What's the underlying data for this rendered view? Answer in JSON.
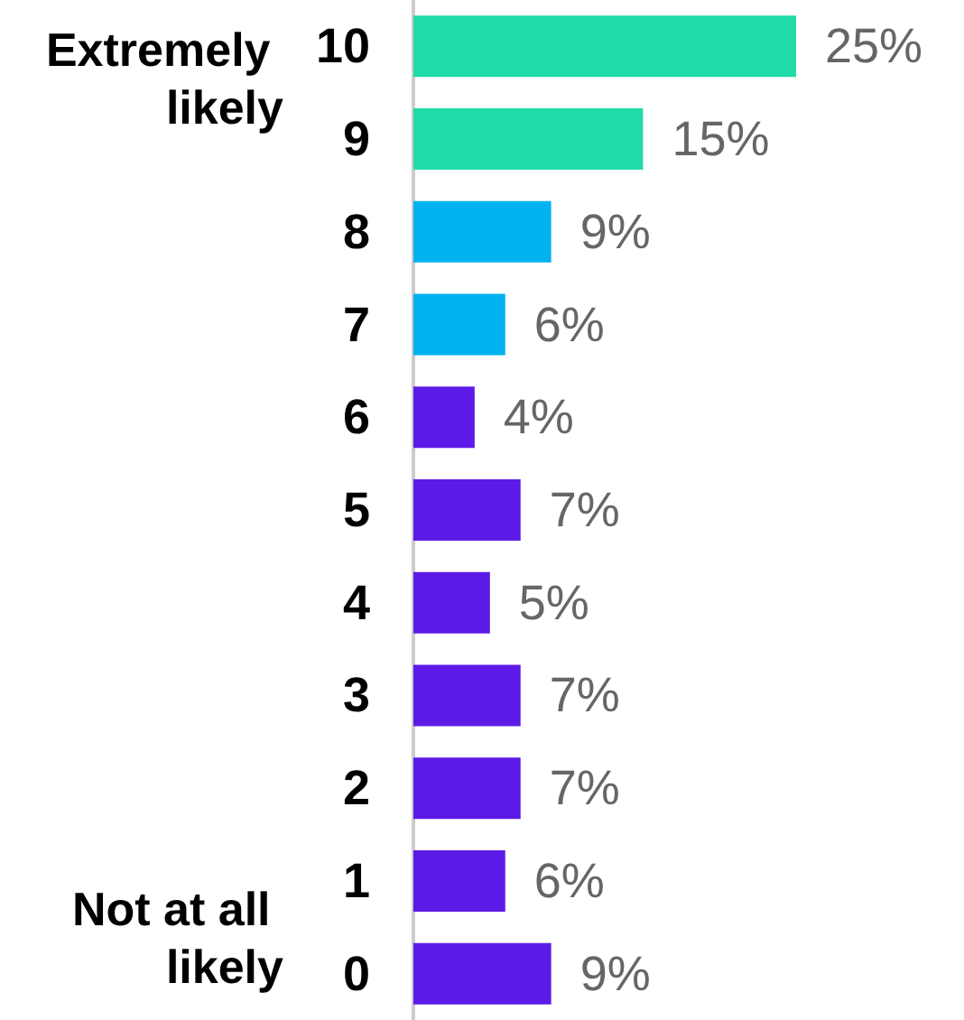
{
  "chart_data": {
    "type": "bar",
    "orientation": "horizontal",
    "categories": [
      "10",
      "9",
      "8",
      "7",
      "6",
      "5",
      "4",
      "3",
      "2",
      "1",
      "0"
    ],
    "values": [
      25,
      15,
      9,
      6,
      4,
      7,
      5,
      7,
      7,
      6,
      9
    ],
    "value_labels": [
      "25%",
      "15%",
      "9%",
      "6%",
      "4%",
      "7%",
      "5%",
      "7%",
      "7%",
      "6%",
      "9%"
    ],
    "colors": [
      "#21dba9",
      "#21dba9",
      "#00b2ef",
      "#00b2ef",
      "#5c1ae6",
      "#5c1ae6",
      "#5c1ae6",
      "#5c1ae6",
      "#5c1ae6",
      "#5c1ae6",
      "#5c1ae6"
    ],
    "annotations": [
      "Extremely likely",
      "Not at all likely"
    ]
  }
}
